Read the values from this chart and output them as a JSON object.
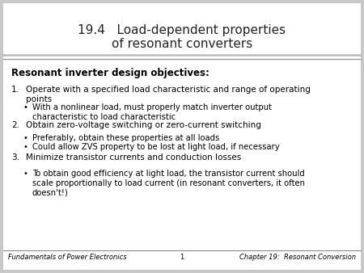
{
  "title_line1": "19.4   Load-dependent properties",
  "title_line2": "of resonant converters",
  "title_fontsize": 11,
  "title_color": "#222222",
  "background_color": "#c8c8c8",
  "header_bold": "Resonant inverter design objectives:",
  "header_fontsize": 8.5,
  "body_fontsize": 7.5,
  "bullet_fontsize": 7.2,
  "footer_fontsize": 6.0,
  "footer_left": "Fundamentals of Power Electronics",
  "footer_center": "1",
  "footer_right": "Chapter 19:  Resonant Conversion",
  "items": [
    {
      "level": 1,
      "num": "1.",
      "text": "Operate with a specified load characteristic and range of operating\npoints"
    },
    {
      "level": 2,
      "num": null,
      "text": "With a nonlinear load, must properly match inverter output\ncharacteristic to load characteristic"
    },
    {
      "level": 1,
      "num": "2.",
      "text": "Obtain zero-voltage switching or zero-current switching"
    },
    {
      "level": 2,
      "num": null,
      "text": "Preferably, obtain these properties at all loads"
    },
    {
      "level": 2,
      "num": null,
      "text": "Could allow ZVS property to be lost at light load, if necessary"
    },
    {
      "level": 1,
      "num": "3.",
      "text": "Minimize transistor currents and conduction losses"
    },
    {
      "level": 2,
      "num": null,
      "text": "To obtain good efficiency at light load, the transistor current should\nscale proportionally to load current (in resonant converters, it often\ndoesn't!)"
    }
  ]
}
